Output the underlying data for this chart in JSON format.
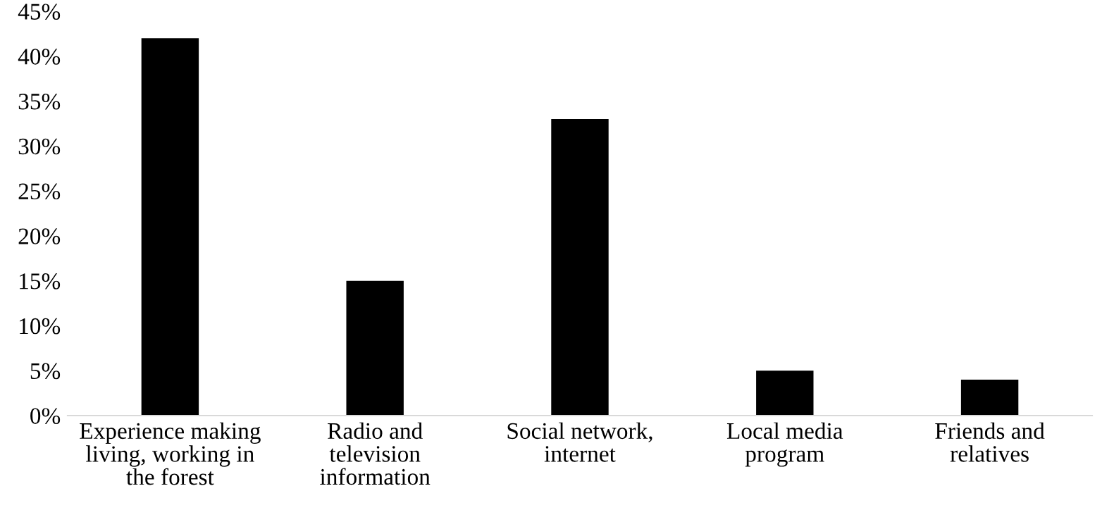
{
  "chart_data": {
    "type": "bar",
    "categories": [
      "Experience making\nliving, working in\nthe forest",
      "Radio and\ntelevision\ninformation",
      "Social network,\ninternet",
      "Local media\nprogram",
      "Friends and\nrelatives"
    ],
    "values": [
      42,
      15,
      33,
      5,
      4
    ],
    "color": "#000000",
    "ylim": [
      0,
      45
    ],
    "yticks": [
      {
        "value": 0,
        "label": "0%"
      },
      {
        "value": 5,
        "label": "5%"
      },
      {
        "value": 10,
        "label": "10%"
      },
      {
        "value": 15,
        "label": "15%"
      },
      {
        "value": 20,
        "label": "20%"
      },
      {
        "value": 25,
        "label": "25%"
      },
      {
        "value": 30,
        "label": "30%"
      },
      {
        "value": 35,
        "label": "35%"
      },
      {
        "value": 40,
        "label": "40%"
      },
      {
        "value": 45,
        "label": "45%"
      }
    ],
    "grid": false,
    "legend": false
  }
}
